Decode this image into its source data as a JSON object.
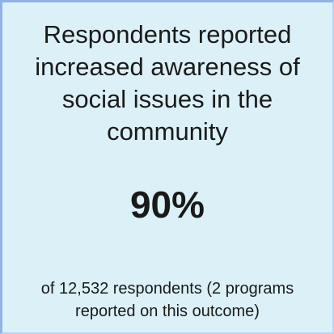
{
  "card": {
    "headline": "Respondents reported increased awareness of social issues in the community",
    "stat": "90%",
    "footnote": "of 12,532 respondents (2 programs reported on this outcome)"
  },
  "colors": {
    "background": "#dcf1f7",
    "border": "#8fb4e3",
    "text": "#1a1a1a"
  }
}
